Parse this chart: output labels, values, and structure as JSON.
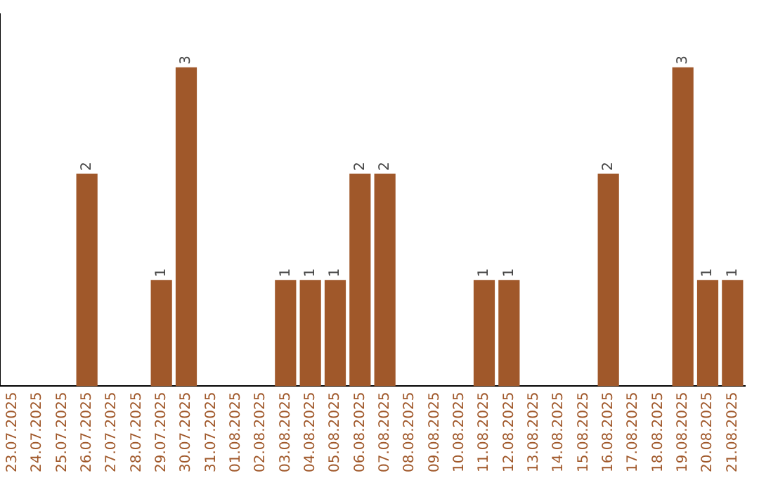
{
  "chart_data": {
    "type": "bar",
    "categories": [
      "23.07.2025",
      "24.07.2025",
      "25.07.2025",
      "26.07.2025",
      "27.07.2025",
      "28.07.2025",
      "29.07.2025",
      "30.07.2025",
      "31.07.2025",
      "01.08.2025",
      "02.08.2025",
      "03.08.2025",
      "04.08.2025",
      "05.08.2025",
      "06.08.2025",
      "07.08.2025",
      "08.08.2025",
      "09.08.2025",
      "10.08.2025",
      "11.08.2025",
      "12.08.2025",
      "13.08.2025",
      "14.08.2025",
      "15.08.2025",
      "16.08.2025",
      "17.08.2025",
      "18.08.2025",
      "19.08.2025",
      "20.08.2025",
      "21.08.2025"
    ],
    "values": [
      0,
      0,
      0,
      2,
      0,
      0,
      1,
      3,
      0,
      0,
      0,
      1,
      1,
      1,
      2,
      2,
      0,
      0,
      0,
      1,
      1,
      0,
      0,
      0,
      2,
      0,
      0,
      3,
      1,
      1
    ],
    "value_labels": [
      null,
      null,
      null,
      "2",
      null,
      null,
      "1",
      "3",
      null,
      null,
      null,
      "1",
      "1",
      "1",
      "2",
      "2",
      null,
      null,
      null,
      "1",
      "1",
      null,
      null,
      null,
      "2",
      null,
      null,
      "3",
      "1",
      "1"
    ],
    "color": "#a0582a",
    "grid": false,
    "legend": false,
    "tick_labels": "x"
  }
}
